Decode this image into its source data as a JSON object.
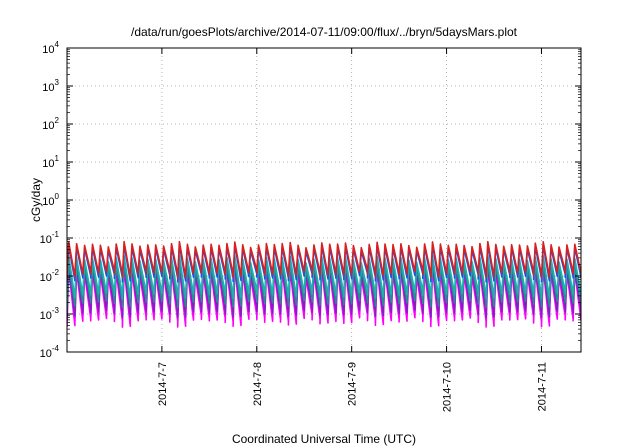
{
  "chart_data": {
    "type": "line",
    "title": "/data/run/goesPlots/archive/2014-07-11/09:00/flux/../bryn/5daysMars.plot",
    "xlabel": "Coordinated Universal Time (UTC)",
    "ylabel": "cGy/day",
    "yscale": "log",
    "ylim_exponents": [
      -4,
      4
    ],
    "y_ticks": [
      {
        "base": "10",
        "exp": "4"
      },
      {
        "base": "10",
        "exp": "3"
      },
      {
        "base": "10",
        "exp": "2"
      },
      {
        "base": "10",
        "exp": "1"
      },
      {
        "base": "10",
        "exp": "0"
      },
      {
        "base": "10",
        "exp": "-1"
      },
      {
        "base": "10",
        "exp": "-2"
      },
      {
        "base": "10",
        "exp": "-3"
      },
      {
        "base": "10",
        "exp": "-4"
      }
    ],
    "x_start": "2014-07-06T00:00",
    "x_end": "2014-07-11T10:00",
    "x_ticks": [
      "2014-7-7",
      "2014-7-8",
      "2014-7-9",
      "2014-7-10",
      "2014-7-11"
    ],
    "grid": true,
    "legend": "none",
    "cycle_hours": 2.0,
    "series": [
      {
        "color": "#d92020",
        "peak": [
          0.055,
          0.08
        ],
        "trough": [
          0.009,
          0.014
        ]
      },
      {
        "color": "#2050e0",
        "peak": [
          0.045,
          0.065
        ],
        "trough": [
          0.007,
          0.011
        ]
      },
      {
        "color": "#20b0b0",
        "peak": [
          0.022,
          0.035
        ],
        "trough": [
          0.0025,
          0.004
        ]
      },
      {
        "color": "#209090",
        "peak": [
          0.015,
          0.024
        ],
        "trough": [
          0.0015,
          0.0025
        ]
      },
      {
        "color": "#8020c0",
        "peak": [
          0.012,
          0.02
        ],
        "trough": [
          0.0008,
          0.0014
        ]
      },
      {
        "color": "#ff00ff",
        "peak": [
          0.009,
          0.016
        ],
        "trough": [
          0.00045,
          0.0009
        ]
      }
    ]
  }
}
